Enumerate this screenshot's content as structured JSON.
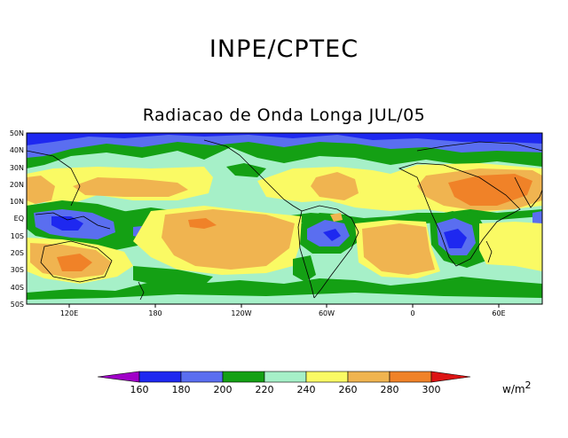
{
  "header": {
    "organization": "INPE/CPTEC",
    "title": "Radiacao de Onda Longa JUL/05"
  },
  "map": {
    "variable": "Outgoing Longwave Radiation",
    "lat_labels": [
      "50N",
      "40N",
      "30N",
      "20N",
      "10N",
      "EQ",
      "10S",
      "20S",
      "30S",
      "40S",
      "50S"
    ],
    "lon_labels": [
      "120E",
      "180",
      "120W",
      "60W",
      "0",
      "60E"
    ],
    "palette": {
      "lt160": "#a000c8",
      "b160_180": "#1e28f0",
      "b180_200": "#5a6ef0",
      "b200_220": "#14a014",
      "b220_240": "#a6f0c8",
      "b240_260": "#fafa64",
      "b260_280": "#f0b450",
      "b280_300": "#f08228",
      "gt300": "#dc1414"
    }
  },
  "colorbar": {
    "ticks": [
      "160",
      "180",
      "200",
      "220",
      "240",
      "260",
      "280",
      "300"
    ],
    "units": "w/m",
    "units_exp": "2"
  }
}
